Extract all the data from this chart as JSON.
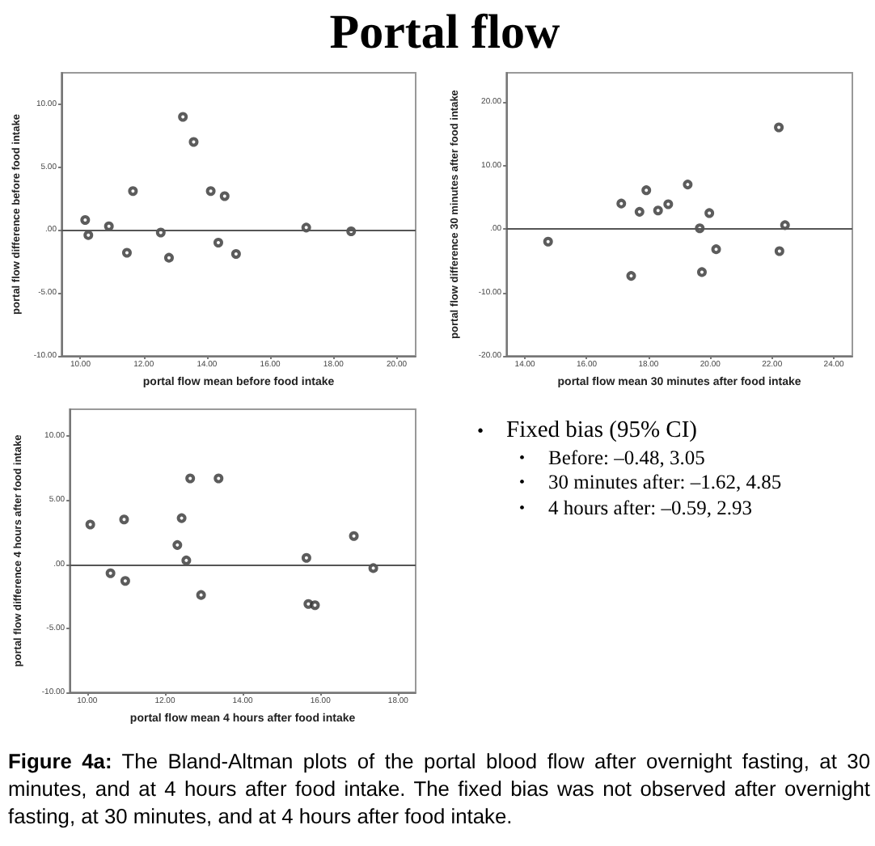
{
  "chart_data": [
    {
      "type": "scatter",
      "title": "Portal flow",
      "xlabel": "portal flow mean before food intake",
      "ylabel": "portal flow difference before food intake",
      "marker": "circle",
      "grid": false,
      "x": [
        10.15,
        10.25,
        10.9,
        11.66,
        11.47,
        12.54,
        12.8,
        13.24,
        13.58,
        14.12,
        14.36,
        14.56,
        14.92,
        17.14,
        18.56
      ],
      "series": [
        {
          "color": "#333333",
          "values": [
            0.8,
            -0.4,
            0.3,
            3.1,
            -1.8,
            -0.2,
            -2.2,
            9.0,
            7.0,
            3.1,
            -1.0,
            2.7,
            -1.9,
            0.2,
            -0.1
          ]
        }
      ],
      "xlim": [
        9.4,
        20.6
      ],
      "ylim": [
        -10,
        12.5
      ],
      "xticks": [
        {
          "value": 10,
          "label": "10.00"
        },
        {
          "value": 12,
          "label": "12.00"
        },
        {
          "value": 14,
          "label": "14.00"
        },
        {
          "value": 16,
          "label": "16.00"
        },
        {
          "value": 18,
          "label": "18.00"
        },
        {
          "value": 20,
          "label": "20.00"
        }
      ],
      "yticks": [
        {
          "value": -10,
          "label": "-10.00"
        },
        {
          "value": -5,
          "label": "-5.00"
        },
        {
          "value": 0,
          "label": ".00"
        },
        {
          "value": 5,
          "label": "5.00"
        },
        {
          "value": 10,
          "label": "10.00"
        }
      ],
      "ref_lines": [
        {
          "axis": "y",
          "value": 0,
          "color": "#555555"
        }
      ],
      "annotations": [
        "Figure 4a: The Bland-Altman plots of the portal blood flow after overnight fasting, at 30 minutes, and at 4 hours after food intake. The fixed bias was not observed after overnight fasting, at 30 minutes, and at 4 hours after food intake."
      ]
    },
    {
      "type": "scatter",
      "xlabel": "portal flow mean 30 minutes after food intake",
      "ylabel": "portal flow difference 30 minutes after food intake",
      "marker": "circle",
      "grid": false,
      "x": [
        14.75,
        17.12,
        17.44,
        17.71,
        17.93,
        18.31,
        18.64,
        19.27,
        19.66,
        19.73,
        19.97,
        20.19,
        22.22,
        22.24,
        22.42
      ],
      "series": [
        {
          "color": "#333333",
          "values": [
            -2,
            4,
            -7.4,
            2.7,
            6.1,
            2.9,
            3.9,
            7,
            0.1,
            -6.8,
            2.5,
            -3.2,
            16,
            -3.5,
            0.6
          ]
        }
      ],
      "xlim": [
        13.4,
        24.6
      ],
      "ylim": [
        -20,
        24.6
      ],
      "xticks": [
        {
          "value": 14,
          "label": "14.00"
        },
        {
          "value": 16,
          "label": "16.00"
        },
        {
          "value": 18,
          "label": "18.00"
        },
        {
          "value": 20,
          "label": "20.00"
        },
        {
          "value": 22,
          "label": "22.00"
        },
        {
          "value": 24,
          "label": "24.00"
        }
      ],
      "yticks": [
        {
          "value": -20,
          "label": "-20.00"
        },
        {
          "value": -10,
          "label": "-10.00"
        },
        {
          "value": 0,
          "label": ".00"
        },
        {
          "value": 10,
          "label": "10.00"
        },
        {
          "value": 20,
          "label": "20.00"
        }
      ],
      "ref_lines": [
        {
          "axis": "y",
          "value": 0,
          "color": "#555555"
        }
      ]
    },
    {
      "type": "scatter",
      "xlabel": "portal flow mean 4 hours after food intake",
      "ylabel": "portal flow difference 4 hours after food intake",
      "marker": "circle",
      "grid": false,
      "x": [
        10.08,
        10.6,
        10.95,
        10.98,
        12.32,
        12.43,
        12.55,
        12.65,
        12.93,
        13.38,
        15.64,
        15.69,
        15.86,
        16.86,
        17.36
      ],
      "series": [
        {
          "color": "#333333",
          "values": [
            3.1,
            -0.7,
            3.5,
            -1.3,
            1.5,
            3.6,
            0.3,
            6.7,
            -2.4,
            6.7,
            0.5,
            -3.1,
            -3.2,
            2.2,
            -0.3
          ]
        }
      ],
      "xlim": [
        9.55,
        18.45
      ],
      "ylim": [
        -10,
        12.1
      ],
      "xticks": [
        {
          "value": 10,
          "label": "10.00"
        },
        {
          "value": 12,
          "label": "12.00"
        },
        {
          "value": 14,
          "label": "14.00"
        },
        {
          "value": 16,
          "label": "16.00"
        },
        {
          "value": 18,
          "label": "18.00"
        }
      ],
      "yticks": [
        {
          "value": -10,
          "label": "-10.00"
        },
        {
          "value": -5,
          "label": "-5.00"
        },
        {
          "value": 0,
          "label": ".00"
        },
        {
          "value": 5,
          "label": "5.00"
        },
        {
          "value": 10,
          "label": "10.00"
        }
      ],
      "ref_lines": [
        {
          "axis": "y",
          "value": 0,
          "color": "#555555"
        }
      ]
    },
    {
      "type": "other",
      "title": "• Fixed bias (95% CI)",
      "annotations": [
        "• Before: –0.48, 3.05",
        "• 30 minutes after: –1.62, 4.85",
        "• 4 hours after: –0.59, 2.93"
      ]
    }
  ]
}
